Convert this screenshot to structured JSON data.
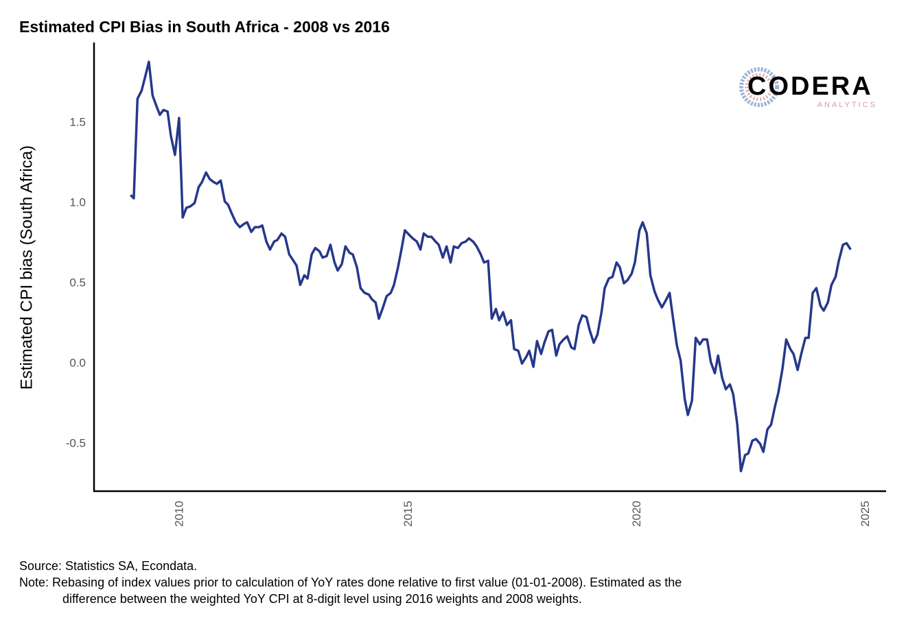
{
  "chart_data": {
    "type": "line",
    "title": "Estimated CPI Bias in South Africa - 2008 vs 2016",
    "y_label": "Estimated CPI bias (South Africa)",
    "logo": {
      "name": "CODERA",
      "subtitle": "ANALYTICS"
    },
    "source": "Source: Statistics SA, Econdata.",
    "note": [
      "Note: Rebasing of index values prior to calculation of YoY rates done relative to first value (01-01-2008). Estimated as the",
      "difference between the weighted YoY CPI at 8-digit level using 2016 weights and 2008 weights."
    ],
    "xlim": [
      2008.12,
      2025.43
    ],
    "ylim": [
      -0.795,
      2.0
    ],
    "xticks": [
      2010,
      2015,
      2020,
      2025
    ],
    "yticks": [
      {
        "value": -0.5,
        "label": "-0.5"
      },
      {
        "value": 0,
        "label": "0.0"
      },
      0.5,
      {
        "value": 1,
        "label": "1.0"
      },
      1.5
    ],
    "grid": false,
    "color": "#26388a",
    "x": [
      2008.92,
      2008.99,
      2009.07,
      2009.16,
      2009.25,
      2009.32,
      2009.4,
      2009.49,
      2009.56,
      2009.64,
      2009.73,
      2009.8,
      2009.89,
      2009.98,
      2010.06,
      2010.14,
      2010.23,
      2010.32,
      2010.41,
      2010.48,
      2010.57,
      2010.65,
      2010.74,
      2010.81,
      2010.89,
      2010.98,
      2011.05,
      2011.14,
      2011.22,
      2011.31,
      2011.4,
      2011.47,
      2011.56,
      2011.64,
      2011.73,
      2011.8,
      2011.89,
      2011.97,
      2012.06,
      2012.13,
      2012.22,
      2012.3,
      2012.39,
      2012.46,
      2012.55,
      2012.63,
      2012.72,
      2012.79,
      2012.88,
      2012.96,
      2013.05,
      2013.12,
      2013.21,
      2013.29,
      2013.38,
      2013.45,
      2013.54,
      2013.62,
      2013.71,
      2013.78,
      2013.87,
      2013.95,
      2014.04,
      2014.13,
      2014.2,
      2014.28,
      2014.35,
      2014.44,
      2014.52,
      2014.61,
      2014.68,
      2014.77,
      2014.85,
      2014.92,
      2015.02,
      2015.09,
      2015.18,
      2015.26,
      2015.33,
      2015.42,
      2015.5,
      2015.59,
      2015.66,
      2015.75,
      2015.83,
      2015.92,
      2015.99,
      2016.08,
      2016.16,
      2016.25,
      2016.32,
      2016.41,
      2016.49,
      2016.58,
      2016.65,
      2016.74,
      2016.82,
      2016.91,
      2016.98,
      2017.07,
      2017.15,
      2017.24,
      2017.31,
      2017.4,
      2017.48,
      2017.57,
      2017.64,
      2017.73,
      2017.81,
      2017.9,
      2017.97,
      2018.06,
      2018.14,
      2018.23,
      2018.3,
      2018.39,
      2018.47,
      2018.56,
      2018.63,
      2018.72,
      2018.8,
      2018.89,
      2018.96,
      2019.05,
      2019.13,
      2019.22,
      2019.29,
      2019.38,
      2019.46,
      2019.55,
      2019.62,
      2019.71,
      2019.79,
      2019.88,
      2019.95,
      2020.05,
      2020.12,
      2020.21,
      2020.29,
      2020.38,
      2020.45,
      2020.54,
      2020.62,
      2020.71,
      2020.78,
      2020.87,
      2020.95,
      2021.04,
      2021.11,
      2021.2,
      2021.28,
      2021.37,
      2021.44,
      2021.53,
      2021.61,
      2021.7,
      2021.77,
      2021.86,
      2021.94,
      2022.03,
      2022.1,
      2022.19,
      2022.27,
      2022.36,
      2022.43,
      2022.52,
      2022.6,
      2022.69,
      2022.76,
      2022.85,
      2022.93,
      2023.02,
      2023.09,
      2023.18,
      2023.26,
      2023.35,
      2023.42,
      2023.51,
      2023.59,
      2023.68,
      2023.75,
      2023.84,
      2023.92,
      2024.01,
      2024.08,
      2024.17,
      2024.25,
      2024.34,
      2024.41,
      2024.5,
      2024.58,
      2024.67
    ],
    "values": [
      1.05,
      1.03,
      1.65,
      1.7,
      1.8,
      1.88,
      1.67,
      1.6,
      1.55,
      1.58,
      1.57,
      1.42,
      1.3,
      1.53,
      0.91,
      0.97,
      0.98,
      1.0,
      1.1,
      1.13,
      1.19,
      1.15,
      1.13,
      1.12,
      1.14,
      1.01,
      0.99,
      0.93,
      0.88,
      0.85,
      0.87,
      0.88,
      0.82,
      0.85,
      0.85,
      0.86,
      0.76,
      0.71,
      0.76,
      0.77,
      0.81,
      0.79,
      0.68,
      0.65,
      0.61,
      0.49,
      0.55,
      0.53,
      0.68,
      0.72,
      0.7,
      0.66,
      0.67,
      0.74,
      0.63,
      0.58,
      0.62,
      0.73,
      0.69,
      0.68,
      0.6,
      0.47,
      0.44,
      0.43,
      0.4,
      0.38,
      0.28,
      0.35,
      0.42,
      0.44,
      0.49,
      0.6,
      0.72,
      0.83,
      0.8,
      0.78,
      0.76,
      0.71,
      0.81,
      0.79,
      0.79,
      0.76,
      0.74,
      0.66,
      0.73,
      0.63,
      0.73,
      0.72,
      0.75,
      0.76,
      0.78,
      0.76,
      0.73,
      0.68,
      0.63,
      0.64,
      0.28,
      0.34,
      0.27,
      0.32,
      0.24,
      0.27,
      0.09,
      0.08,
      0.0,
      0.04,
      0.08,
      -0.02,
      0.14,
      0.06,
      0.13,
      0.2,
      0.21,
      0.05,
      0.12,
      0.15,
      0.17,
      0.1,
      0.09,
      0.24,
      0.3,
      0.29,
      0.21,
      0.13,
      0.18,
      0.32,
      0.47,
      0.53,
      0.54,
      0.63,
      0.6,
      0.5,
      0.52,
      0.56,
      0.63,
      0.83,
      0.88,
      0.81,
      0.55,
      0.45,
      0.4,
      0.35,
      0.39,
      0.44,
      0.29,
      0.11,
      0.02,
      -0.22,
      -0.32,
      -0.23,
      0.16,
      0.12,
      0.15,
      0.15,
      0.01,
      -0.06,
      0.05,
      -0.09,
      -0.16,
      -0.13,
      -0.19,
      -0.38,
      -0.67,
      -0.57,
      -0.56,
      -0.48,
      -0.47,
      -0.5,
      -0.55,
      -0.41,
      -0.38,
      -0.26,
      -0.18,
      -0.03,
      0.15,
      0.09,
      0.06,
      -0.04,
      0.06,
      0.16,
      0.16,
      0.44,
      0.47,
      0.36,
      0.33,
      0.38,
      0.49,
      0.54,
      0.64,
      0.74,
      0.75,
      0.71
    ]
  }
}
